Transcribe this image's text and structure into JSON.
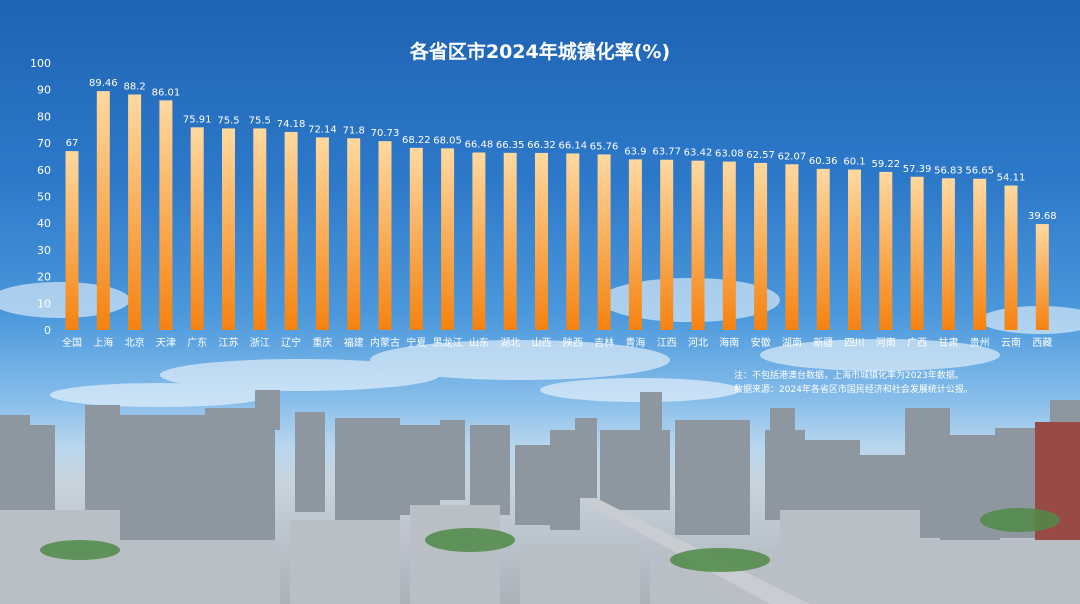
{
  "chart_data": {
    "type": "bar",
    "title": "各省区市2024年城镇化率(%)",
    "ylim": [
      0,
      100
    ],
    "yticks": [
      0,
      10,
      20,
      30,
      40,
      50,
      60,
      70,
      80,
      90,
      100
    ],
    "grid": false,
    "categories": [
      "全国",
      "上海",
      "北京",
      "天津",
      "广东",
      "江苏",
      "浙江",
      "辽宁",
      "重庆",
      "福建",
      "内蒙古",
      "宁夏",
      "黑龙江",
      "山东",
      "湖北",
      "山西",
      "陕西",
      "吉林",
      "青海",
      "江西",
      "河北",
      "海南",
      "安徽",
      "湖南",
      "新疆",
      "四川",
      "河南",
      "广西",
      "甘肃",
      "贵州",
      "云南",
      "西藏"
    ],
    "values": [
      67,
      89.46,
      88.2,
      86.01,
      75.91,
      75.5,
      75.5,
      74.18,
      72.14,
      71.8,
      70.73,
      68.22,
      68.05,
      66.48,
      66.35,
      66.32,
      66.14,
      65.76,
      63.9,
      63.77,
      63.42,
      63.08,
      62.57,
      62.07,
      60.36,
      60.1,
      59.22,
      57.39,
      56.83,
      56.65,
      54.11,
      39.68
    ],
    "value_labels": [
      "67",
      "89.46",
      "88.2",
      "86.01",
      "75.91",
      "75.5",
      "75.5",
      "74.18",
      "72.14",
      "71.8",
      "70.73",
      "68.22",
      "68.05",
      "66.48",
      "66.35",
      "66.32",
      "66.14",
      "65.76",
      "63.9",
      "63.77",
      "63.42",
      "63.08",
      "62.57",
      "62.07",
      "60.36",
      "60.1",
      "59.22",
      "57.39",
      "56.83",
      "56.65",
      "54.11",
      "39.68"
    ],
    "bar_color_top": "#ffd9a0",
    "bar_color_bottom": "#f5820f"
  },
  "notes": [
    "注：不包括港澳台数据，上海市城镇化率为2023年数据。",
    "数据来源：2024年各省区市国民经济和社会发展统计公报。"
  ]
}
